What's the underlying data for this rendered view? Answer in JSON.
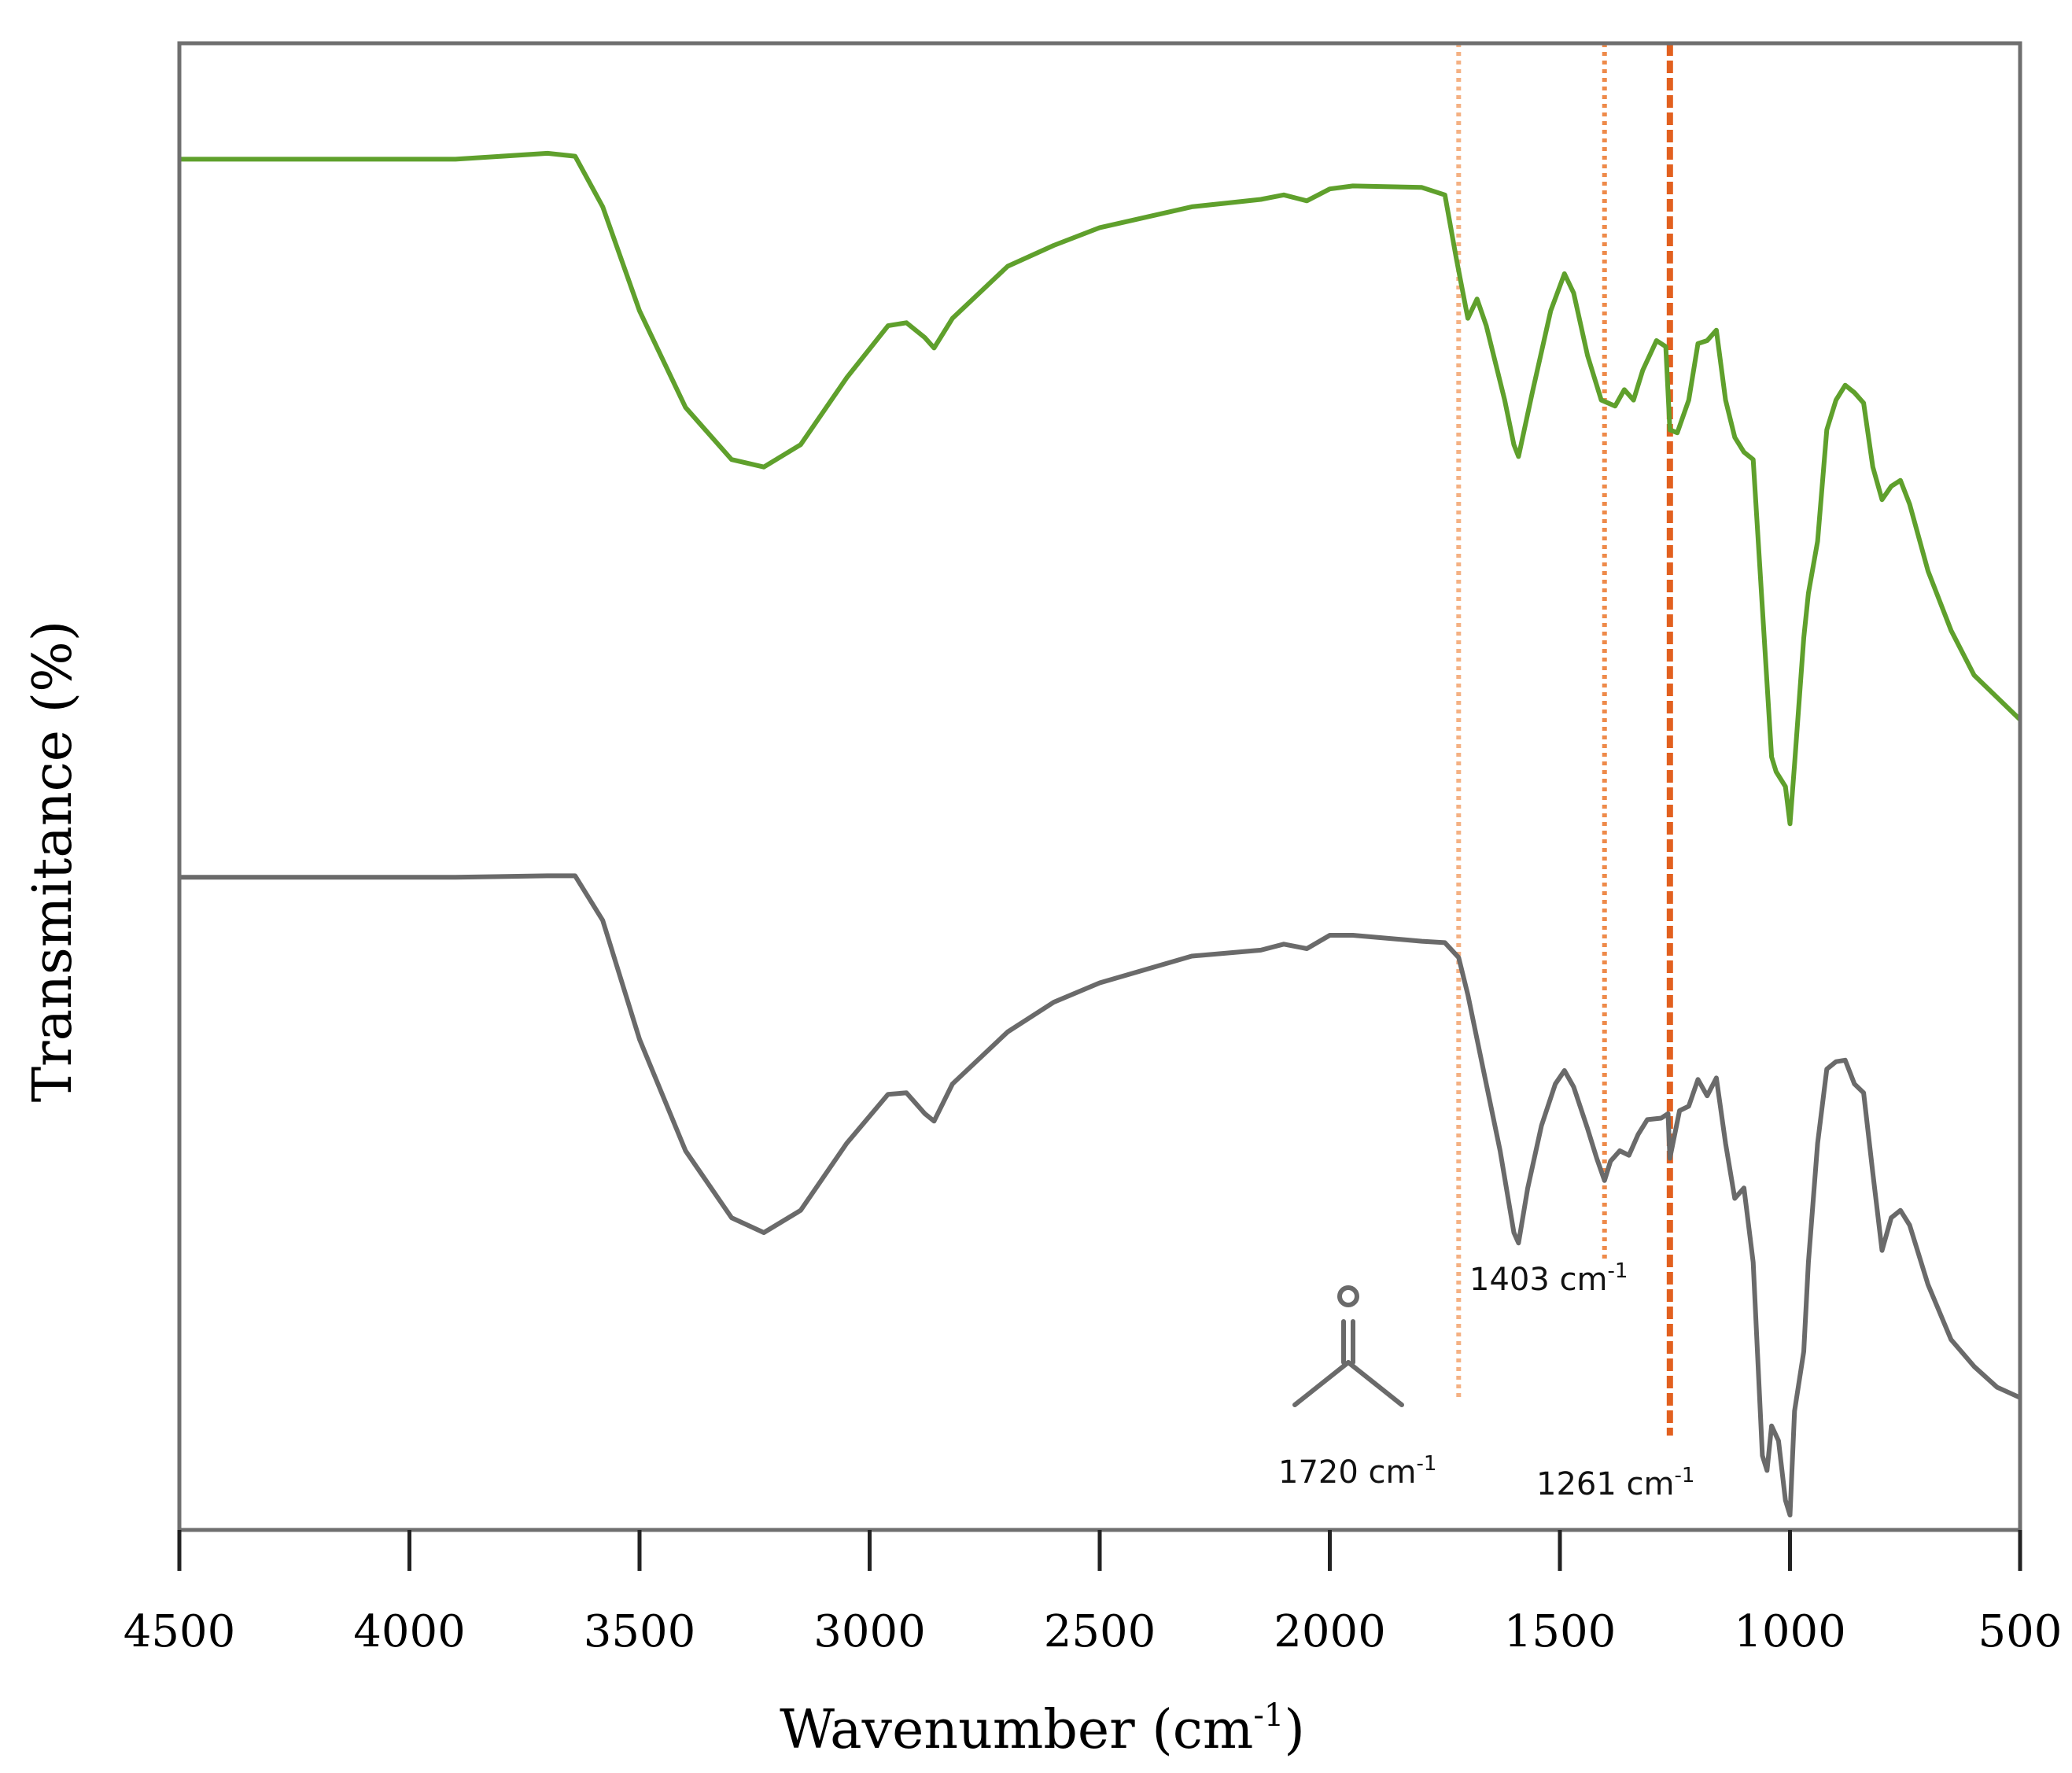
{
  "chart_data": {
    "type": "line",
    "title": "",
    "xlabel": "Wavenumber (cm-1)",
    "xlabel_main": "Wavenumber (cm",
    "xlabel_sup": "-1",
    "xlabel_close": ")",
    "ylabel": "Transmitance (%)",
    "xlim": [
      4500,
      500
    ],
    "ylim": [
      0,
      100
    ],
    "x_direction": "reversed",
    "grid": false,
    "xticks": [
      4500,
      4000,
      3500,
      3000,
      2500,
      2000,
      1500,
      1000,
      500
    ],
    "series": [
      {
        "name": "upper spectrum (green)",
        "color": "#5fa02c",
        "points": [
          [
            4500,
            92.2
          ],
          [
            4200,
            92.2
          ],
          [
            3900,
            92.2
          ],
          [
            3700,
            92.6
          ],
          [
            3640,
            92.4
          ],
          [
            3580,
            89
          ],
          [
            3500,
            82
          ],
          [
            3400,
            75.5
          ],
          [
            3300,
            72
          ],
          [
            3230,
            71.5
          ],
          [
            3150,
            73
          ],
          [
            3050,
            77.5
          ],
          [
            2960,
            81
          ],
          [
            2920,
            81.2
          ],
          [
            2880,
            80.2
          ],
          [
            2860,
            79.5
          ],
          [
            2820,
            81.5
          ],
          [
            2700,
            85
          ],
          [
            2600,
            86.4
          ],
          [
            2500,
            87.6
          ],
          [
            2300,
            89
          ],
          [
            2150,
            89.5
          ],
          [
            2100,
            89.8
          ],
          [
            2050,
            89.4
          ],
          [
            2000,
            90.2
          ],
          [
            1950,
            90.4
          ],
          [
            1800,
            90.3
          ],
          [
            1750,
            89.8
          ],
          [
            1725,
            85.5
          ],
          [
            1700,
            81.5
          ],
          [
            1680,
            82.8
          ],
          [
            1660,
            81
          ],
          [
            1620,
            76
          ],
          [
            1600,
            73
          ],
          [
            1590,
            72.2
          ],
          [
            1560,
            76.5
          ],
          [
            1520,
            82
          ],
          [
            1490,
            84.5
          ],
          [
            1470,
            83.2
          ],
          [
            1440,
            79
          ],
          [
            1410,
            76
          ],
          [
            1380,
            75.6
          ],
          [
            1360,
            76.7
          ],
          [
            1340,
            76
          ],
          [
            1320,
            78
          ],
          [
            1290,
            80
          ],
          [
            1270,
            79.6
          ],
          [
            1261,
            74
          ],
          [
            1245,
            73.8
          ],
          [
            1220,
            76
          ],
          [
            1200,
            79.8
          ],
          [
            1180,
            80
          ],
          [
            1160,
            80.7
          ],
          [
            1140,
            76
          ],
          [
            1120,
            73.5
          ],
          [
            1100,
            72.5
          ],
          [
            1080,
            72
          ],
          [
            1060,
            62
          ],
          [
            1040,
            52
          ],
          [
            1030,
            51
          ],
          [
            1010,
            50
          ],
          [
            1000,
            47.5
          ],
          [
            990,
            51.5
          ],
          [
            970,
            60
          ],
          [
            960,
            63
          ],
          [
            940,
            66.5
          ],
          [
            920,
            74
          ],
          [
            900,
            76
          ],
          [
            880,
            77
          ],
          [
            860,
            76.5
          ],
          [
            840,
            75.8
          ],
          [
            820,
            71.5
          ],
          [
            800,
            69.3
          ],
          [
            780,
            70.2
          ],
          [
            760,
            70.6
          ],
          [
            740,
            69
          ],
          [
            700,
            64.5
          ],
          [
            650,
            60.5
          ],
          [
            600,
            57.5
          ],
          [
            550,
            56
          ],
          [
            500,
            54.5
          ]
        ]
      },
      {
        "name": "lower spectrum (gray)",
        "color": "#6a6a6a",
        "points": [
          [
            4500,
            43.9
          ],
          [
            4200,
            43.9
          ],
          [
            3900,
            43.9
          ],
          [
            3700,
            44
          ],
          [
            3640,
            44
          ],
          [
            3580,
            41
          ],
          [
            3500,
            33
          ],
          [
            3400,
            25.5
          ],
          [
            3300,
            21
          ],
          [
            3230,
            20
          ],
          [
            3150,
            21.5
          ],
          [
            3050,
            26
          ],
          [
            2960,
            29.3
          ],
          [
            2920,
            29.4
          ],
          [
            2880,
            28
          ],
          [
            2860,
            27.5
          ],
          [
            2820,
            30
          ],
          [
            2700,
            33.5
          ],
          [
            2600,
            35.5
          ],
          [
            2500,
            36.8
          ],
          [
            2300,
            38.6
          ],
          [
            2150,
            39
          ],
          [
            2100,
            39.4
          ],
          [
            2050,
            39.1
          ],
          [
            2000,
            40
          ],
          [
            1950,
            40
          ],
          [
            1800,
            39.6
          ],
          [
            1750,
            39.5
          ],
          [
            1720,
            38.5
          ],
          [
            1700,
            36
          ],
          [
            1660,
            30
          ],
          [
            1630,
            25.5
          ],
          [
            1600,
            20
          ],
          [
            1590,
            19.3
          ],
          [
            1570,
            23
          ],
          [
            1540,
            27.2
          ],
          [
            1510,
            30
          ],
          [
            1490,
            30.9
          ],
          [
            1470,
            29.8
          ],
          [
            1440,
            27
          ],
          [
            1420,
            25
          ],
          [
            1403,
            23.5
          ],
          [
            1390,
            24.8
          ],
          [
            1370,
            25.5
          ],
          [
            1350,
            25.2
          ],
          [
            1330,
            26.6
          ],
          [
            1310,
            27.6
          ],
          [
            1280,
            27.7
          ],
          [
            1265,
            28
          ],
          [
            1261,
            25
          ],
          [
            1240,
            28.2
          ],
          [
            1220,
            28.5
          ],
          [
            1200,
            30.3
          ],
          [
            1180,
            29.2
          ],
          [
            1160,
            30.4
          ],
          [
            1140,
            26
          ],
          [
            1120,
            22.3
          ],
          [
            1100,
            23
          ],
          [
            1080,
            18
          ],
          [
            1060,
            5
          ],
          [
            1050,
            4
          ],
          [
            1040,
            7
          ],
          [
            1025,
            6
          ],
          [
            1010,
            2
          ],
          [
            1000,
            1
          ],
          [
            990,
            8
          ],
          [
            970,
            12
          ],
          [
            960,
            18
          ],
          [
            940,
            26
          ],
          [
            920,
            31
          ],
          [
            900,
            31.5
          ],
          [
            880,
            31.6
          ],
          [
            860,
            30
          ],
          [
            840,
            29.4
          ],
          [
            820,
            24
          ],
          [
            800,
            18.8
          ],
          [
            780,
            21
          ],
          [
            760,
            21.5
          ],
          [
            740,
            20.5
          ],
          [
            700,
            16.5
          ],
          [
            650,
            12.8
          ],
          [
            600,
            11
          ],
          [
            550,
            9.6
          ],
          [
            500,
            8.9
          ]
        ]
      }
    ],
    "reference_lines": [
      {
        "x": 1720,
        "label_num": "1720 cm",
        "label_sup": "-1",
        "color": "#f4b183",
        "style": "dotted"
      },
      {
        "x": 1403,
        "label_num": "1403 cm",
        "label_sup": "-1",
        "color": "#ee8a4a",
        "style": "dotted"
      },
      {
        "x": 1261,
        "label_num": "1261 cm",
        "label_sup": "-1",
        "color": "#e2601f",
        "style": "dashed"
      }
    ],
    "carbonyl_icon": "carbonyl-structure-icon"
  }
}
